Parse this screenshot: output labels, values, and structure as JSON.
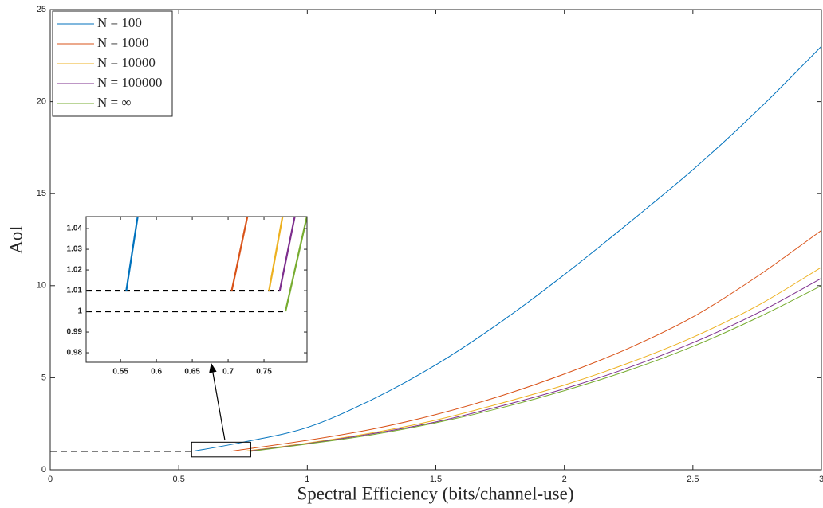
{
  "chart_data": [
    {
      "type": "line",
      "xlabel": "Spectral Efficiency (bits/channel-use)",
      "ylabel": "AoI",
      "xlim": [
        0,
        3
      ],
      "ylim": [
        0,
        25
      ],
      "xticks": [
        0,
        0.5,
        1,
        1.5,
        2,
        2.5,
        3
      ],
      "yticks": [
        0,
        5,
        10,
        15,
        20,
        25
      ],
      "legend": "upper left",
      "series": [
        {
          "name": "N = 100",
          "color": "#0072BD",
          "x": [
            0.558,
            0.75,
            1,
            1.25,
            1.5,
            1.75,
            2,
            2.25,
            2.5,
            2.75,
            3
          ],
          "values": [
            1.01,
            1.5,
            2.3,
            3.8,
            5.7,
            8.0,
            10.6,
            13.4,
            16.3,
            19.5,
            23
          ]
        },
        {
          "name": "N = 1000",
          "color": "#D95319",
          "x": [
            0.705,
            1,
            1.25,
            1.5,
            1.75,
            2,
            2.25,
            2.5,
            2.75,
            3
          ],
          "values": [
            1.01,
            1.6,
            2.2,
            3.0,
            4.0,
            5.2,
            6.6,
            8.3,
            10.5,
            13.0
          ]
        },
        {
          "name": "N = 10000",
          "color": "#EDB120",
          "x": [
            0.757,
            1,
            1.25,
            1.5,
            1.75,
            2,
            2.25,
            2.5,
            2.75,
            3
          ],
          "values": [
            1.01,
            1.45,
            2.0,
            2.7,
            3.6,
            4.6,
            5.8,
            7.2,
            8.9,
            11.0
          ]
        },
        {
          "name": "N = 100000",
          "color": "#7E2F8E",
          "x": [
            0.772,
            1,
            1.25,
            1.5,
            1.75,
            2,
            2.25,
            2.5,
            2.75,
            3
          ],
          "values": [
            1.01,
            1.42,
            1.95,
            2.6,
            3.45,
            4.4,
            5.55,
            6.9,
            8.5,
            10.4
          ]
        },
        {
          "name": "N = ∞",
          "color": "#77AC30",
          "x": [
            0.78,
            1,
            1.25,
            1.5,
            1.75,
            2,
            2.25,
            2.5,
            2.75,
            3
          ],
          "values": [
            1.0,
            1.4,
            1.9,
            2.55,
            3.35,
            4.3,
            5.4,
            6.7,
            8.25,
            10.0
          ]
        }
      ],
      "reference_lines": [
        {
          "y": 1,
          "x": [
            0,
            0.558
          ]
        }
      ],
      "zoom_box": {
        "x": [
          0.55,
          0.78
        ],
        "y": [
          0.7,
          1.5
        ]
      }
    },
    {
      "type": "line",
      "xlim": [
        0.502,
        0.81
      ],
      "ylim": [
        0.9754,
        1.0458
      ],
      "xticks": [
        0.55,
        0.6,
        0.65,
        0.7,
        0.75
      ],
      "yticks": [
        0.98,
        0.99,
        1,
        1.01,
        1.02,
        1.03,
        1.04
      ],
      "series": [
        {
          "color": "#0072BD",
          "x": [
            0.558,
            0.574
          ],
          "values": [
            1.01,
            1.046
          ]
        },
        {
          "color": "#D95319",
          "x": [
            0.705,
            0.727
          ],
          "values": [
            1.01,
            1.046
          ]
        },
        {
          "color": "#EDB120",
          "x": [
            0.757,
            0.776
          ],
          "values": [
            1.01,
            1.046
          ]
        },
        {
          "color": "#7E2F8E",
          "x": [
            0.772,
            0.793
          ],
          "values": [
            1.01,
            1.046
          ]
        },
        {
          "color": "#77AC30",
          "x": [
            0.78,
            0.81
          ],
          "values": [
            1.0,
            1.046
          ]
        }
      ],
      "reference_lines": [
        {
          "y": 1.01,
          "x": [
            0.502,
            0.772
          ]
        },
        {
          "y": 1,
          "x": [
            0.502,
            0.78
          ]
        }
      ]
    }
  ]
}
